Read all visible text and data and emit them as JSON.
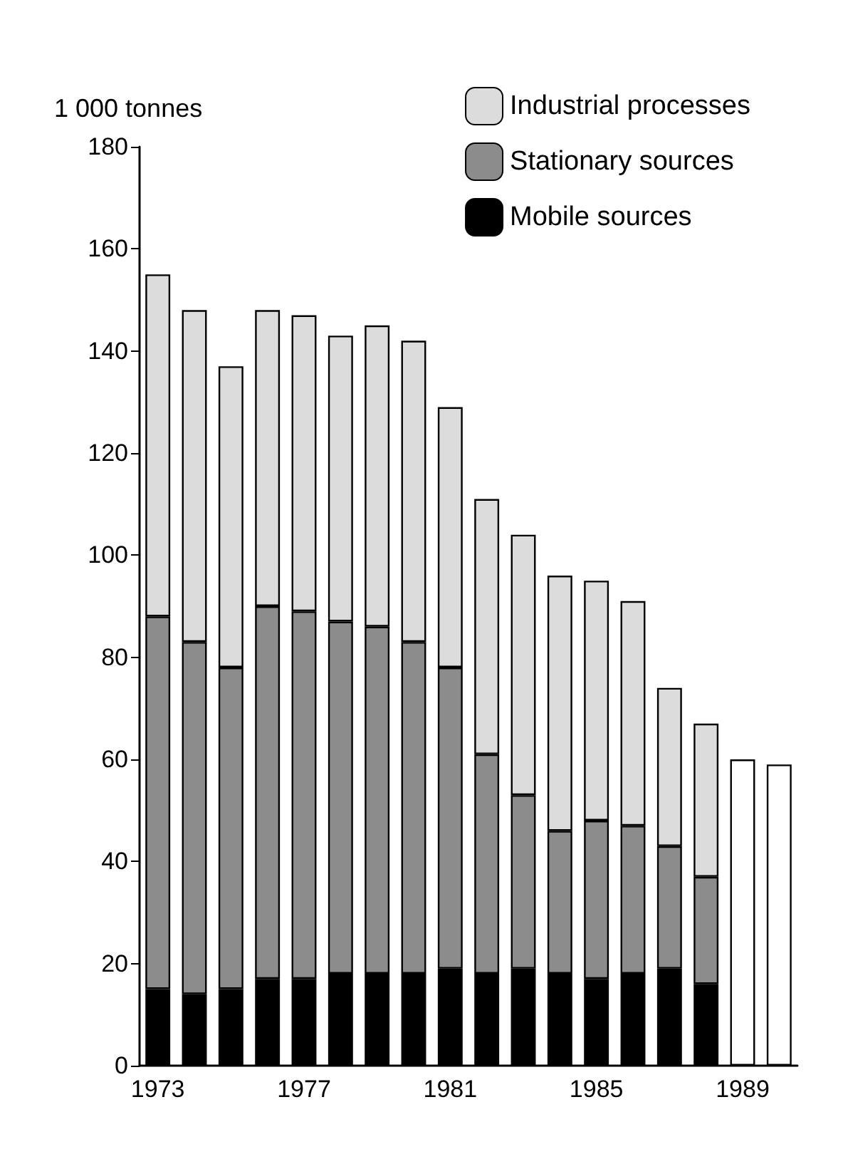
{
  "chart_data": {
    "type": "bar",
    "ylabel": "1 000 tonnes",
    "stacked": true,
    "grid": false,
    "legend": "top right",
    "categories": [
      "1973",
      null,
      null,
      null,
      "1977",
      null,
      null,
      null,
      "1981",
      null,
      null,
      null,
      "1985",
      null,
      null,
      null,
      "1989",
      null
    ],
    "ylim": [
      0,
      180
    ],
    "yticks": [
      0,
      20,
      40,
      60,
      80,
      100,
      120,
      140,
      160,
      180
    ],
    "series": [
      {
        "name": "Mobile sources",
        "color": "#000000",
        "values": [
          15,
          14,
          15,
          17,
          17,
          18,
          18,
          18,
          19,
          18,
          19,
          18,
          17,
          18,
          19,
          16,
          null,
          null
        ]
      },
      {
        "name": "Stationary sources",
        "color": "#8c8c8c",
        "values": [
          73,
          69,
          63,
          73,
          72,
          69,
          68,
          65,
          59,
          43,
          34,
          28,
          31,
          29,
          24,
          21,
          null,
          null
        ]
      },
      {
        "name": "Industrial processes",
        "color": "#dcdcdc",
        "values": [
          67,
          65,
          59,
          58,
          58,
          56,
          59,
          59,
          51,
          50,
          51,
          50,
          47,
          44,
          31,
          30,
          null,
          null
        ]
      },
      {
        "color": "#ffffff",
        "values": [
          null,
          null,
          null,
          null,
          null,
          null,
          null,
          null,
          null,
          null,
          null,
          null,
          null,
          null,
          null,
          null,
          60,
          59
        ]
      }
    ]
  }
}
